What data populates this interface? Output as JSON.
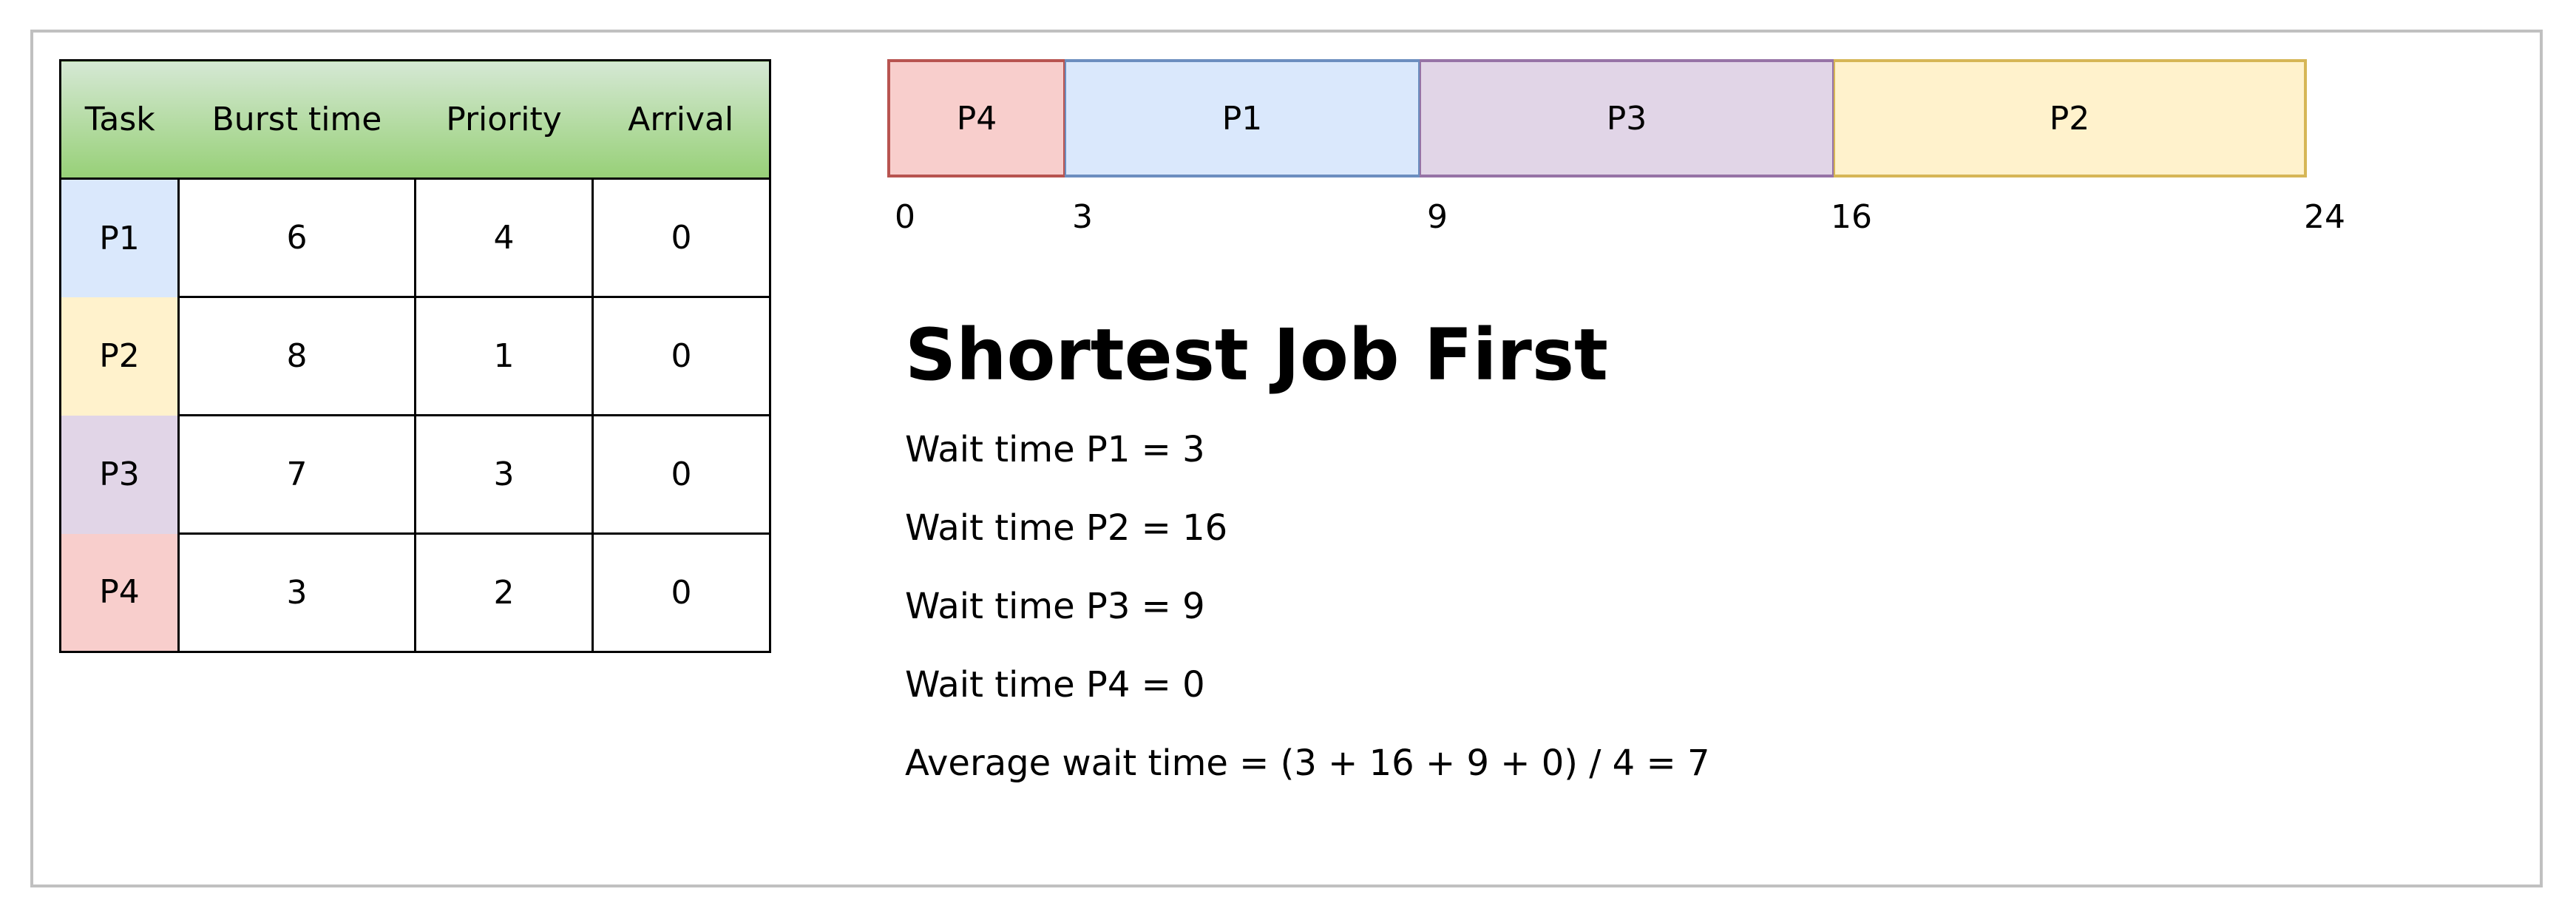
{
  "table": {
    "headers": {
      "task": "Task",
      "burst": "Burst time",
      "priority": "Priority",
      "arrival": "Arrival"
    },
    "rows": [
      {
        "task": "P1",
        "burst": "6",
        "priority": "4",
        "arrival": "0",
        "color": "#dae8fc"
      },
      {
        "task": "P2",
        "burst": "8",
        "priority": "1",
        "arrival": "0",
        "color": "#fff2cc"
      },
      {
        "task": "P3",
        "burst": "7",
        "priority": "3",
        "arrival": "0",
        "color": "#e1d5e7"
      },
      {
        "task": "P4",
        "burst": "3",
        "priority": "2",
        "arrival": "0",
        "color": "#f8cecc"
      }
    ]
  },
  "gantt": {
    "blocks": [
      {
        "label": "P4",
        "start": 0,
        "end": 3,
        "fill": "#f8cecc",
        "stroke": "#b85450"
      },
      {
        "label": "P1",
        "start": 3,
        "end": 9,
        "fill": "#dae8fc",
        "stroke": "#6c8ebf"
      },
      {
        "label": "P3",
        "start": 9,
        "end": 16,
        "fill": "#e1d5e7",
        "stroke": "#9673a6"
      },
      {
        "label": "P2",
        "start": 16,
        "end": 24,
        "fill": "#fff2cc",
        "stroke": "#d6b656"
      }
    ],
    "ticks": [
      "0",
      "3",
      "9",
      "16",
      "24"
    ],
    "total": 24
  },
  "summary": {
    "title": "Shortest Job First",
    "lines": [
      "Wait time P1 = 3",
      "Wait time P2 = 16",
      "Wait time P3 = 9",
      "Wait time P4 = 0",
      "Average wait time = (3 + 16 + 9 + 0) / 4 = 7"
    ]
  }
}
